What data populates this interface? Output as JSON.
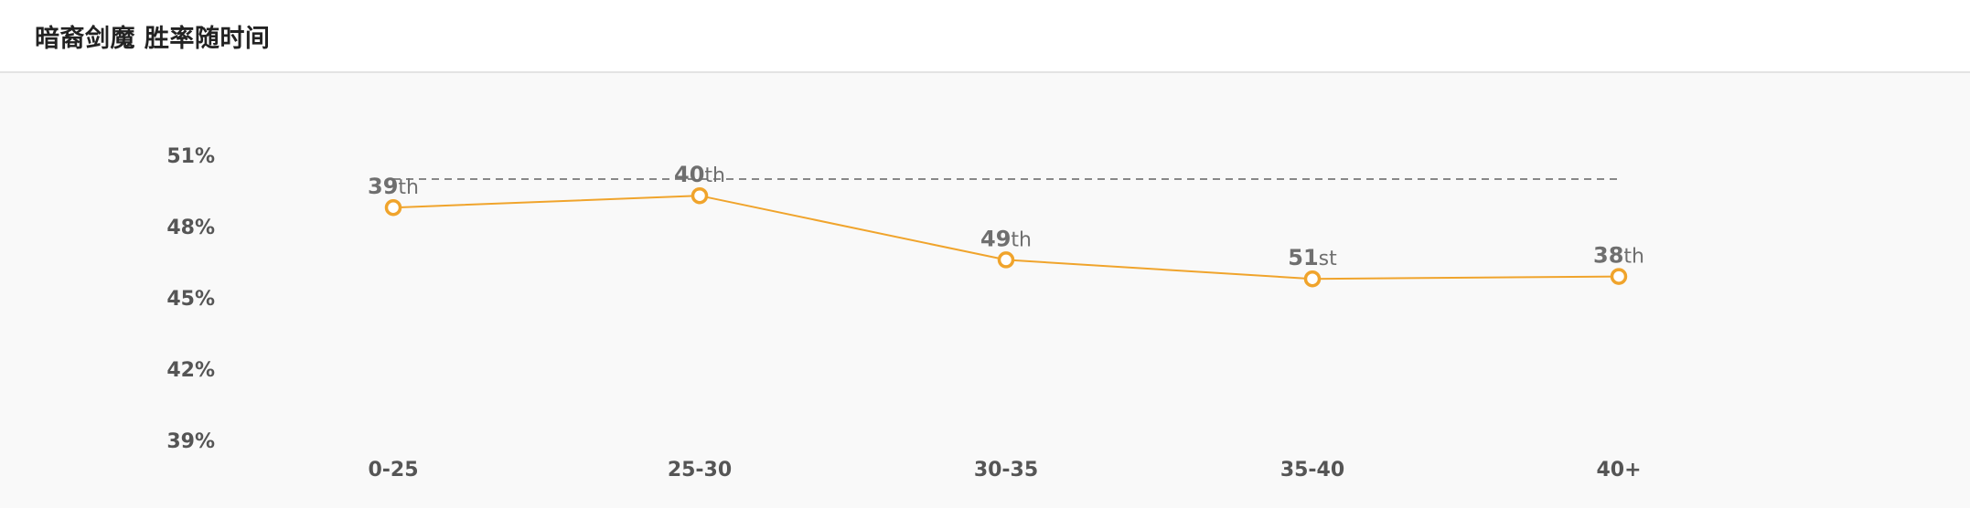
{
  "title": "暗裔剑魔 胜率随时间",
  "colors": {
    "line": "#f0a42c",
    "marker_fill": "#ffffff",
    "reference_line": "#888888",
    "panel_background": "#f9f9f9"
  },
  "chart_data": {
    "type": "line",
    "categories": [
      "0-25",
      "25-30",
      "30-35",
      "35-40",
      "40+"
    ],
    "series": [
      {
        "values": [
          48.8,
          49.3,
          46.6,
          45.8,
          45.9
        ],
        "rank_labels": [
          {
            "num": "39",
            "suffix": "th"
          },
          {
            "num": "40",
            "suffix": "th"
          },
          {
            "num": "49",
            "suffix": "th"
          },
          {
            "num": "51",
            "suffix": "st"
          },
          {
            "num": "38",
            "suffix": "th"
          }
        ]
      }
    ],
    "reference_value": 50.0,
    "ylim": [
      39,
      51
    ],
    "yticks": [
      39,
      42,
      45,
      48,
      51
    ],
    "ytick_labels": [
      "39%",
      "42%",
      "45%",
      "48%",
      "51%"
    ],
    "grid": false,
    "legend": "none"
  }
}
